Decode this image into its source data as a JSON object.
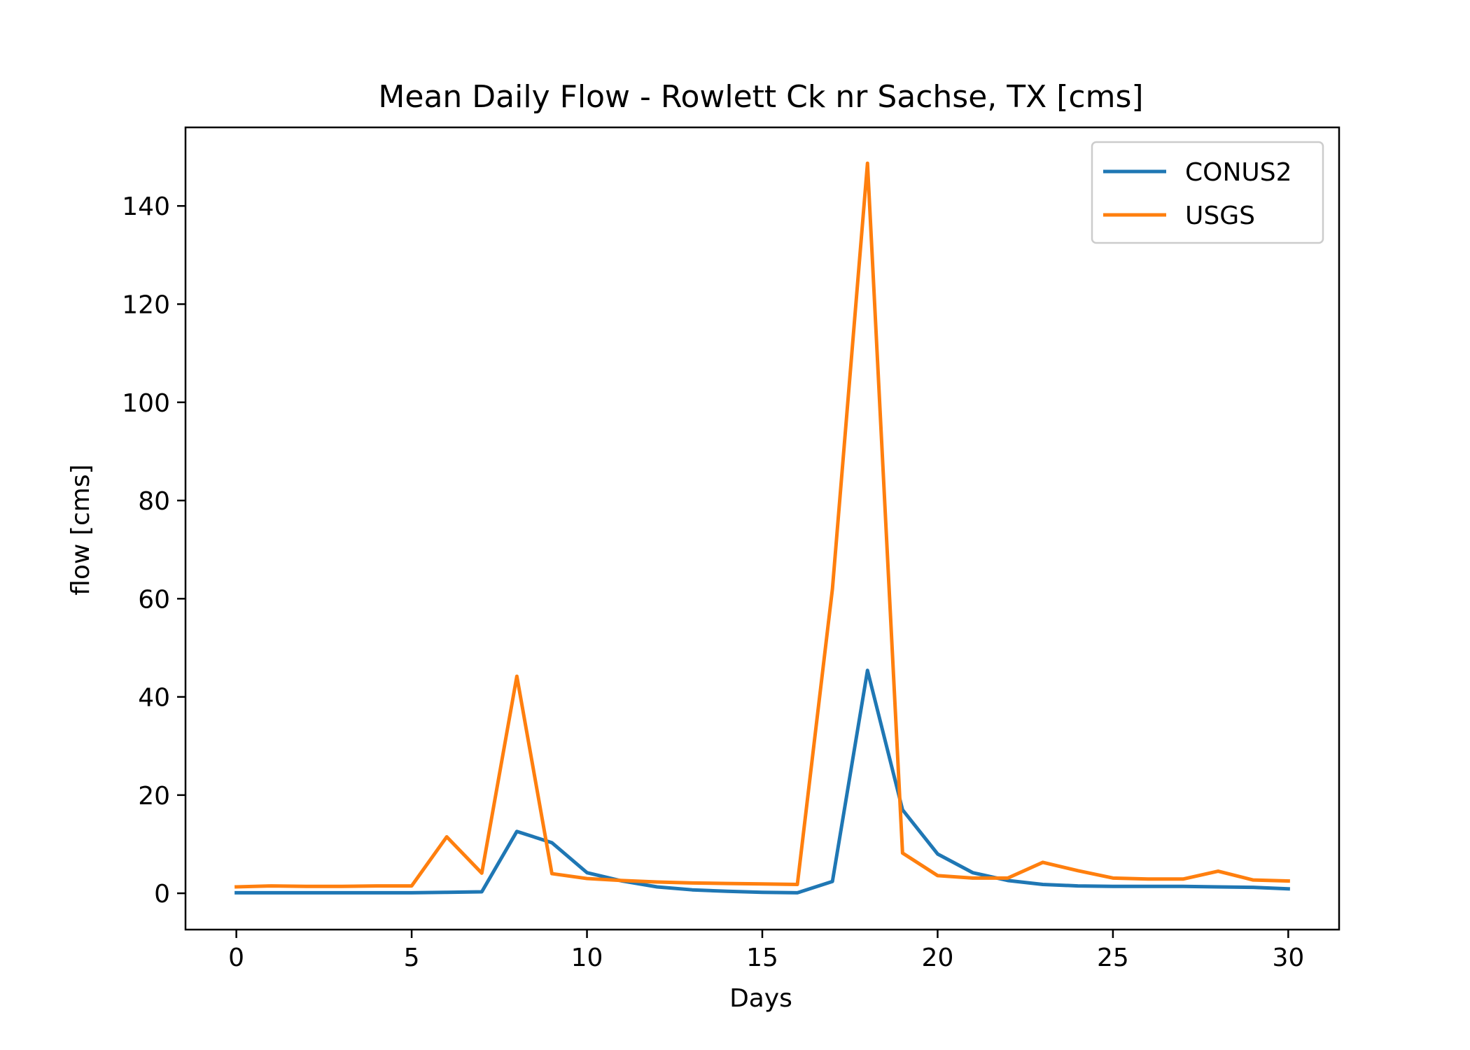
{
  "chart_data": {
    "type": "line",
    "title": "Mean Daily Flow - Rowlett Ck nr Sachse, TX [cms]",
    "xlabel": "Days",
    "ylabel": "flow [cms]",
    "xlim": [
      -1.45,
      31.45
    ],
    "ylim": [
      -7.4,
      156
    ],
    "xticks": [
      0,
      5,
      10,
      15,
      20,
      25,
      30
    ],
    "yticks": [
      0,
      20,
      40,
      60,
      80,
      100,
      120,
      140
    ],
    "grid": false,
    "legend": "top-right",
    "x": [
      0,
      1,
      2,
      3,
      4,
      5,
      6,
      7,
      8,
      9,
      10,
      11,
      12,
      13,
      14,
      15,
      16,
      17,
      18,
      19,
      20,
      21,
      22,
      23,
      24,
      25,
      26,
      27,
      28,
      29,
      30
    ],
    "series": [
      {
        "name": "CONUS2",
        "color": "#1f77b4",
        "values": [
          0.1,
          0.1,
          0.1,
          0.1,
          0.1,
          0.1,
          0.2,
          0.3,
          12.6,
          10.3,
          4.2,
          2.5,
          1.3,
          0.7,
          0.4,
          0.2,
          0.1,
          2.4,
          45.4,
          17.0,
          8.0,
          4.2,
          2.6,
          1.8,
          1.5,
          1.4,
          1.4,
          1.4,
          1.3,
          1.2,
          0.9
        ]
      },
      {
        "name": "USGS",
        "color": "#ff7f0e",
        "values": [
          1.3,
          1.5,
          1.4,
          1.4,
          1.5,
          1.5,
          11.5,
          4.1,
          44.2,
          4.0,
          3.0,
          2.6,
          2.3,
          2.1,
          2.0,
          1.9,
          1.8,
          62.0,
          148.7,
          8.2,
          3.6,
          3.1,
          3.1,
          6.3,
          4.6,
          3.1,
          2.9,
          2.9,
          4.5,
          2.7,
          2.5
        ]
      }
    ]
  }
}
